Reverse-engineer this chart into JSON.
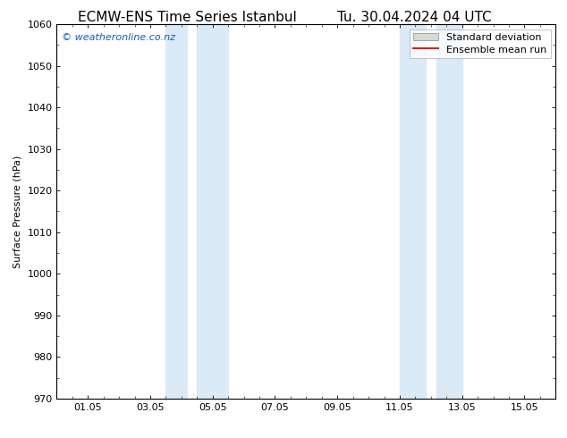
{
  "title_left": "ECMW-ENS Time Series Istanbul",
  "title_right": "Tu. 30.04.2024 04 UTC",
  "ylabel": "Surface Pressure (hPa)",
  "ylim": [
    970,
    1060
  ],
  "yticks": [
    970,
    980,
    990,
    1000,
    1010,
    1020,
    1030,
    1040,
    1050,
    1060
  ],
  "xtick_labels": [
    "01.05",
    "03.05",
    "05.05",
    "07.05",
    "09.05",
    "11.05",
    "13.05",
    "15.05"
  ],
  "xtick_positions": [
    1,
    3,
    5,
    7,
    9,
    11,
    13,
    15
  ],
  "xlim": [
    0.0,
    16.0
  ],
  "shaded_bands": [
    {
      "x_start": 3.5,
      "x_end": 4.17
    },
    {
      "x_start": 4.5,
      "x_end": 5.5
    },
    {
      "x_start": 11.0,
      "x_end": 11.83
    },
    {
      "x_start": 12.17,
      "x_end": 13.0
    }
  ],
  "shaded_color": "#dbeaf7",
  "watermark_text": "© weatheronline.co.nz",
  "watermark_color": "#1a56cc",
  "watermark_fontsize": 8,
  "legend_std_label": "Standard deviation",
  "legend_ens_label": "Ensemble mean run",
  "legend_std_facecolor": "#d8d8d8",
  "legend_std_edgecolor": "#999999",
  "legend_ens_color": "#dd2200",
  "background_color": "#ffffff",
  "title_fontsize": 11,
  "axis_ylabel_fontsize": 8,
  "tick_fontsize": 8,
  "spine_color": "#000000",
  "tick_color": "#000000"
}
